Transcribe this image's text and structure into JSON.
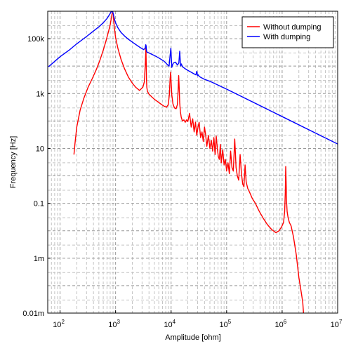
{
  "chart_data": {
    "type": "line",
    "xlabel": "Amplitude [ohm]",
    "ylabel": "Frequency [Hz]",
    "x_scale": "log",
    "y_scale": "log",
    "xlim": [
      60,
      10000000
    ],
    "ylim": [
      1e-05,
      1000000
    ],
    "grid": true,
    "legend_position": "top-right",
    "x_ticks": [
      {
        "value": 100,
        "mantissa": "10",
        "exp": "2"
      },
      {
        "value": 1000,
        "mantissa": "10",
        "exp": "3"
      },
      {
        "value": 10000,
        "mantissa": "10",
        "exp": "4"
      },
      {
        "value": 100000,
        "mantissa": "10",
        "exp": "5"
      },
      {
        "value": 1000000,
        "mantissa": "10",
        "exp": "6"
      },
      {
        "value": 10000000,
        "mantissa": "10",
        "exp": "7"
      }
    ],
    "y_ticks": [
      {
        "value": 100000,
        "label": "100k"
      },
      {
        "value": 1000,
        "label": "1k"
      },
      {
        "value": 10,
        "label": "10"
      },
      {
        "value": 0.1,
        "label": "0.1"
      },
      {
        "value": 0.001,
        "label": "1m"
      },
      {
        "value": 1e-05,
        "label": "0.01m"
      }
    ],
    "series": [
      {
        "name": "Without dumping",
        "color": "#ff0000",
        "x": [
          178,
          185,
          200,
          230,
          270,
          320,
          380,
          450,
          520,
          600,
          680,
          750,
          800,
          840,
          870,
          890,
          905,
          920,
          950,
          1000,
          1100,
          1250,
          1450,
          1700,
          2000,
          2300,
          2700,
          3100,
          3300,
          3450,
          3520,
          3560,
          3600,
          3650,
          3750,
          4000,
          4500,
          5000,
          5700,
          6500,
          7400,
          8300,
          8900,
          9300,
          9600,
          9800,
          10000,
          10300,
          10800,
          11500,
          12300,
          13000,
          13400,
          13700,
          14000,
          14300,
          14700,
          15200,
          16000,
          17000,
          18000,
          19000,
          20000,
          21500,
          23000,
          24500,
          26000,
          27500,
          29000,
          30500,
          32000,
          34000,
          36000,
          38000,
          40000,
          42000,
          44000,
          47000,
          50000,
          53000,
          56000,
          59000,
          62000,
          65000,
          68000,
          71000,
          74000,
          77000,
          80000,
          85000,
          90000,
          95000,
          100000,
          106000,
          112000,
          118000,
          125000,
          132000,
          140000,
          148000,
          156000,
          165000,
          175000,
          185000,
          195000,
          205000,
          215000,
          225000,
          240000,
          260000,
          290000,
          330000,
          380000,
          450000,
          540000,
          650000,
          770000,
          880000,
          980000,
          1060000,
          1110000,
          1140000,
          1160000,
          1180000,
          1200000,
          1230000,
          1280000,
          1350000,
          1450000,
          1600000,
          1800000,
          2000000,
          2200000,
          2350000,
          2450000
        ],
        "values": [
          6,
          14,
          60,
          250,
          700,
          1700,
          3500,
          7500,
          16000,
          38000,
          90000,
          190000,
          320000,
          580000,
          860000,
          950000,
          800000,
          520000,
          260000,
          110000,
          45000,
          18000,
          8000,
          4000,
          2400,
          1700,
          1300,
          1700,
          2700,
          15000,
          48000,
          15000,
          3500,
          1700,
          1200,
          950,
          750,
          620,
          510,
          420,
          350,
          320,
          400,
          900,
          3500,
          6000,
          2800,
          900,
          420,
          300,
          280,
          400,
          1400,
          4500,
          1600,
          450,
          220,
          140,
          100,
          110,
          90,
          110,
          95,
          190,
          60,
          120,
          40,
          90,
          30,
          60,
          90,
          25,
          40,
          18,
          60,
          30,
          12,
          30,
          10,
          20,
          8,
          25,
          6,
          28,
          10,
          5,
          4,
          14,
          3,
          9,
          2.5,
          4,
          1.5,
          3,
          1.2,
          8,
          2,
          1.5,
          22,
          2,
          1,
          0.7,
          6,
          1.2,
          0.5,
          0.4,
          2.5,
          0.6,
          0.35,
          0.25,
          0.15,
          0.1,
          0.055,
          0.03,
          0.017,
          0.011,
          0.0085,
          0.01,
          0.014,
          0.02,
          0.05,
          0.25,
          2.2,
          0.6,
          0.12,
          0.05,
          0.03,
          0.02,
          0.015,
          0.006,
          0.0013,
          0.0002,
          6e-05,
          2.5e-05,
          7.5e-06
        ]
      },
      {
        "name": "With dumping",
        "color": "#0000ff",
        "x": [
          62,
          100,
          150,
          200,
          300,
          400,
          500,
          600,
          700,
          780,
          830,
          860,
          880,
          895,
          910,
          930,
          960,
          1000,
          1100,
          1250,
          1450,
          1700,
          2000,
          2400,
          2800,
          3200,
          3400,
          3500,
          3550,
          3600,
          3650,
          3750,
          4000,
          4500,
          5500,
          6500,
          7500,
          8500,
          9200,
          9600,
          9900,
          10100,
          10300,
          10600,
          11000,
          12000,
          13000,
          13800,
          14300,
          14800,
          15300,
          16000,
          18000,
          20000,
          23000,
          26000,
          28000,
          29000,
          30000,
          31000,
          32000,
          35000,
          40000,
          50000,
          100000,
          1000000,
          10000000
        ],
        "values": [
          9500,
          22000,
          40000,
          65000,
          120000,
          190000,
          270000,
          380000,
          540000,
          760000,
          950000,
          1000000,
          980000,
          900000,
          800000,
          650000,
          500000,
          380000,
          250000,
          170000,
          125000,
          95000,
          75000,
          58000,
          47000,
          40000,
          44000,
          60000,
          55000,
          38000,
          33000,
          32000,
          30000,
          27000,
          22000,
          18000,
          15000,
          11500,
          10000,
          25000,
          45000,
          20000,
          9000,
          11000,
          13000,
          14000,
          11000,
          13000,
          35000,
          10000,
          12000,
          9500,
          8000,
          7000,
          6000,
          5200,
          4800,
          6500,
          4500,
          4800,
          4200,
          3800,
          3300,
          2800,
          1450,
          145,
          14.5
        ]
      }
    ]
  }
}
